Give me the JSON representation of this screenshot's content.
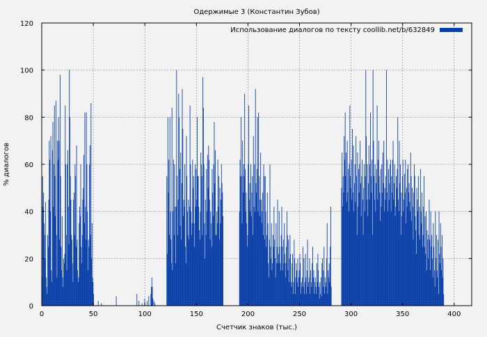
{
  "chart_data": {
    "type": "bar",
    "title": "Одержимые 3 (Константин Зубов)",
    "xlabel": "Счетчик знаков (тыс.)",
    "ylabel": "% диалогов",
    "xlim": [
      0,
      417
    ],
    "ylim": [
      0,
      120
    ],
    "x_ticks": [
      0,
      50,
      100,
      150,
      200,
      250,
      300,
      350,
      400
    ],
    "y_ticks": [
      0,
      20,
      40,
      60,
      80,
      100,
      120
    ],
    "grid": true,
    "legend_position": "top-right",
    "series": [
      {
        "name": "Использование диалогов по тексту coollib.net/b/632849",
        "color": "#0a3fa8",
        "x_step": 0.5,
        "values": [
          12,
          55,
          42,
          48,
          35,
          30,
          20,
          44,
          12,
          8,
          5,
          30,
          25,
          45,
          70,
          62,
          40,
          72,
          15,
          10,
          66,
          78,
          42,
          60,
          85,
          55,
          38,
          87,
          30,
          12,
          70,
          62,
          80,
          70,
          28,
          98,
          55,
          25,
          15,
          38,
          12,
          8,
          20,
          18,
          22,
          85,
          60,
          30,
          15,
          60,
          66,
          42,
          26,
          100,
          80,
          55,
          45,
          30,
          28,
          18,
          10,
          45,
          48,
          30,
          60,
          55,
          25,
          68,
          28,
          15,
          10,
          12,
          35,
          42,
          38,
          60,
          25,
          18,
          30,
          45,
          50,
          64,
          35,
          82,
          42,
          28,
          82,
          60,
          40,
          15,
          28,
          25,
          60,
          68,
          30,
          86,
          20,
          35,
          12,
          10,
          5,
          0,
          0,
          0,
          0,
          0,
          0,
          0,
          0,
          2,
          0,
          0,
          0,
          0,
          0,
          1,
          0,
          0,
          0,
          0,
          0,
          0,
          0,
          0,
          0,
          0,
          0,
          0,
          0,
          0,
          0,
          0,
          0,
          0,
          0,
          0,
          0,
          0,
          0,
          0,
          0,
          0,
          0,
          0,
          4,
          0,
          0,
          0,
          0,
          0,
          0,
          0,
          0,
          0,
          0,
          0,
          0,
          0,
          0,
          0,
          0,
          0,
          0,
          0,
          0,
          0,
          0,
          0,
          0,
          0,
          0,
          0,
          0,
          0,
          0,
          0,
          0,
          0,
          0,
          0,
          0,
          0,
          0,
          0,
          5,
          0,
          0,
          0,
          2,
          0,
          0,
          0,
          0,
          0,
          1,
          0,
          0,
          0,
          0,
          3,
          0,
          0,
          0,
          0,
          2,
          0,
          0,
          4,
          0,
          0,
          0,
          5,
          8,
          12,
          8,
          3,
          0,
          2,
          0,
          1,
          0,
          0,
          0,
          0,
          0,
          0,
          0,
          0,
          0,
          0,
          0,
          0,
          0,
          0,
          0,
          0,
          0,
          0,
          0,
          0,
          0,
          0,
          55,
          22,
          80,
          48,
          62,
          30,
          80,
          40,
          28,
          18,
          84,
          15,
          40,
          62,
          30,
          60,
          42,
          18,
          42,
          100,
          55,
          30,
          45,
          90,
          80,
          58,
          34,
          65,
          28,
          52,
          92,
          75,
          38,
          45,
          42,
          60,
          25,
          18,
          72,
          55,
          40,
          30,
          45,
          28,
          42,
          85,
          60,
          40,
          30,
          35,
          62,
          50,
          55,
          35,
          25,
          60,
          42,
          58,
          45,
          80,
          55,
          55,
          42,
          32,
          28,
          40,
          65,
          60,
          55,
          30,
          97,
          84,
          60,
          35,
          20,
          45,
          30,
          58,
          40,
          64,
          50,
          68,
          62,
          45,
          28,
          40,
          35,
          25,
          58,
          48,
          38,
          60,
          78,
          52,
          66,
          30,
          30,
          40,
          35,
          62,
          42,
          55,
          28,
          50,
          35,
          45,
          60,
          52,
          48,
          38,
          0,
          0,
          0,
          0,
          0,
          0,
          0,
          0,
          0,
          0,
          0,
          0,
          0,
          0,
          0,
          0,
          0,
          0,
          0,
          0,
          0,
          0,
          0,
          0,
          0,
          0,
          0,
          0,
          0,
          0,
          0,
          40,
          62,
          55,
          80,
          55,
          35,
          70,
          48,
          60,
          55,
          90,
          58,
          40,
          48,
          35,
          25,
          30,
          60,
          85,
          45,
          52,
          40,
          60,
          38,
          48,
          55,
          30,
          72,
          42,
          60,
          40,
          92,
          52,
          48,
          58,
          80,
          40,
          82,
          55,
          38,
          45,
          65,
          45,
          35,
          40,
          48,
          30,
          60,
          55,
          28,
          55,
          40,
          25,
          30,
          48,
          35,
          18,
          12,
          28,
          60,
          25,
          20,
          35,
          15,
          18,
          30,
          25,
          42,
          28,
          20,
          12,
          35,
          18,
          25,
          45,
          18,
          22,
          40,
          25,
          18,
          15,
          30,
          42,
          25,
          15,
          28,
          18,
          35,
          22,
          12,
          18,
          25,
          40,
          30,
          15,
          28,
          10,
          20,
          30,
          22,
          10,
          8,
          18,
          22,
          5,
          10,
          28,
          20,
          5,
          12,
          18,
          15,
          10,
          20,
          8,
          12,
          15,
          22,
          18,
          5,
          10,
          8,
          12,
          25,
          8,
          20,
          5,
          10,
          22,
          12,
          5,
          15,
          28,
          8,
          10,
          12,
          20,
          5,
          15,
          10,
          8,
          18,
          25,
          12,
          15,
          5,
          10,
          12,
          8,
          5,
          18,
          10,
          22,
          15,
          8,
          3,
          10,
          5,
          12,
          4,
          18,
          20,
          8,
          15,
          25,
          5,
          12,
          8,
          10,
          20,
          35,
          5,
          15,
          12,
          18,
          10,
          25,
          42,
          8,
          0,
          0,
          0,
          0,
          0,
          0,
          0,
          0,
          0,
          0,
          0,
          0,
          0,
          0,
          0,
          0,
          0,
          0,
          0,
          50,
          65,
          42,
          55,
          48,
          72,
          62,
          82,
          55,
          65,
          44,
          70,
          48,
          58,
          40,
          60,
          85,
          55,
          50,
          62,
          45,
          75,
          48,
          68,
          40,
          52,
          60,
          44,
          72,
          55,
          30,
          65,
          42,
          58,
          48,
          60,
          70,
          52,
          38,
          55,
          62,
          45,
          30,
          50,
          60,
          40,
          55,
          100,
          72,
          45,
          60,
          38,
          52,
          68,
          45,
          60,
          82,
          55,
          48,
          62,
          30,
          100,
          70,
          55,
          45,
          60,
          40,
          52,
          58,
          85,
          45,
          62,
          70,
          55,
          48,
          36,
          58,
          42,
          60,
          48,
          65,
          52,
          70,
          40,
          50,
          45,
          55,
          100,
          48,
          62,
          40,
          58,
          45,
          52,
          60,
          62,
          40,
          55,
          48,
          62,
          70,
          45,
          52,
          60,
          38,
          42,
          55,
          50,
          58,
          80,
          45,
          40,
          70,
          52,
          60,
          30,
          48,
          38,
          55,
          62,
          40,
          45,
          56,
          48,
          62,
          35,
          50,
          42,
          58,
          60,
          48,
          52,
          44,
          40,
          65,
          55,
          36,
          50,
          42,
          28,
          48,
          60,
          55,
          38,
          32,
          22,
          50,
          45,
          40,
          55,
          30,
          42,
          28,
          58,
          40,
          35,
          48,
          25,
          30,
          42,
          55,
          25,
          38,
          22,
          40,
          15,
          32,
          28,
          20,
          30,
          45,
          28,
          15,
          40,
          25,
          30,
          20,
          12,
          35,
          25,
          15,
          8,
          40,
          20,
          30,
          15,
          12,
          28,
          5,
          40,
          22,
          18,
          35,
          25,
          15,
          30,
          12,
          20,
          5,
          0,
          0,
          0,
          0,
          0,
          0,
          0,
          0,
          0,
          0,
          0,
          0,
          0,
          0,
          0,
          0,
          0,
          0,
          0,
          0,
          0,
          0,
          0,
          0,
          0,
          0,
          0,
          0,
          0,
          0,
          0,
          0,
          0,
          0,
          0,
          0,
          0,
          0,
          0,
          0,
          0,
          0,
          0,
          0,
          0,
          0,
          0,
          0,
          0,
          0,
          0,
          0,
          0,
          0,
          0,
          0,
          0,
          0,
          0,
          0,
          0,
          0,
          0,
          0,
          0,
          0,
          0,
          0,
          0,
          0,
          0,
          0,
          0,
          0,
          0,
          0,
          0,
          0,
          0,
          0,
          0,
          0,
          0,
          0,
          0,
          0,
          0,
          0,
          0,
          0,
          0,
          0,
          0,
          0,
          0,
          0,
          0,
          0,
          0,
          0,
          0,
          0,
          0,
          0,
          0,
          0,
          0,
          0,
          0,
          0,
          0,
          0,
          0,
          0,
          0,
          0,
          0,
          0,
          0,
          0,
          0,
          0,
          0,
          0,
          0,
          0,
          0,
          0,
          0,
          0,
          0,
          0,
          0,
          0,
          0,
          0,
          0,
          0,
          0,
          0,
          0,
          0,
          0,
          0,
          0,
          0,
          0,
          0,
          0,
          0,
          0,
          0,
          0,
          0,
          0,
          0,
          0,
          0,
          0,
          0,
          0,
          0,
          0,
          0,
          0,
          0,
          0,
          0,
          0,
          0,
          0,
          0,
          0,
          0,
          0,
          0,
          0,
          0,
          0,
          0,
          0,
          0,
          0,
          0,
          0,
          0,
          0,
          0,
          0,
          0,
          0,
          0,
          0,
          0,
          0,
          0,
          0,
          0,
          0,
          0,
          0,
          0,
          0,
          0,
          0,
          0,
          0,
          0,
          0,
          0,
          0,
          0,
          0,
          0,
          0,
          0,
          0,
          0,
          0,
          0,
          0,
          0,
          0,
          0,
          0,
          0,
          0,
          0,
          0,
          0,
          0,
          0,
          0,
          0,
          0,
          0,
          0,
          0,
          0,
          0,
          0,
          0,
          0,
          0,
          0,
          0,
          0,
          0,
          0,
          0,
          0,
          0
        ]
      }
    ]
  }
}
